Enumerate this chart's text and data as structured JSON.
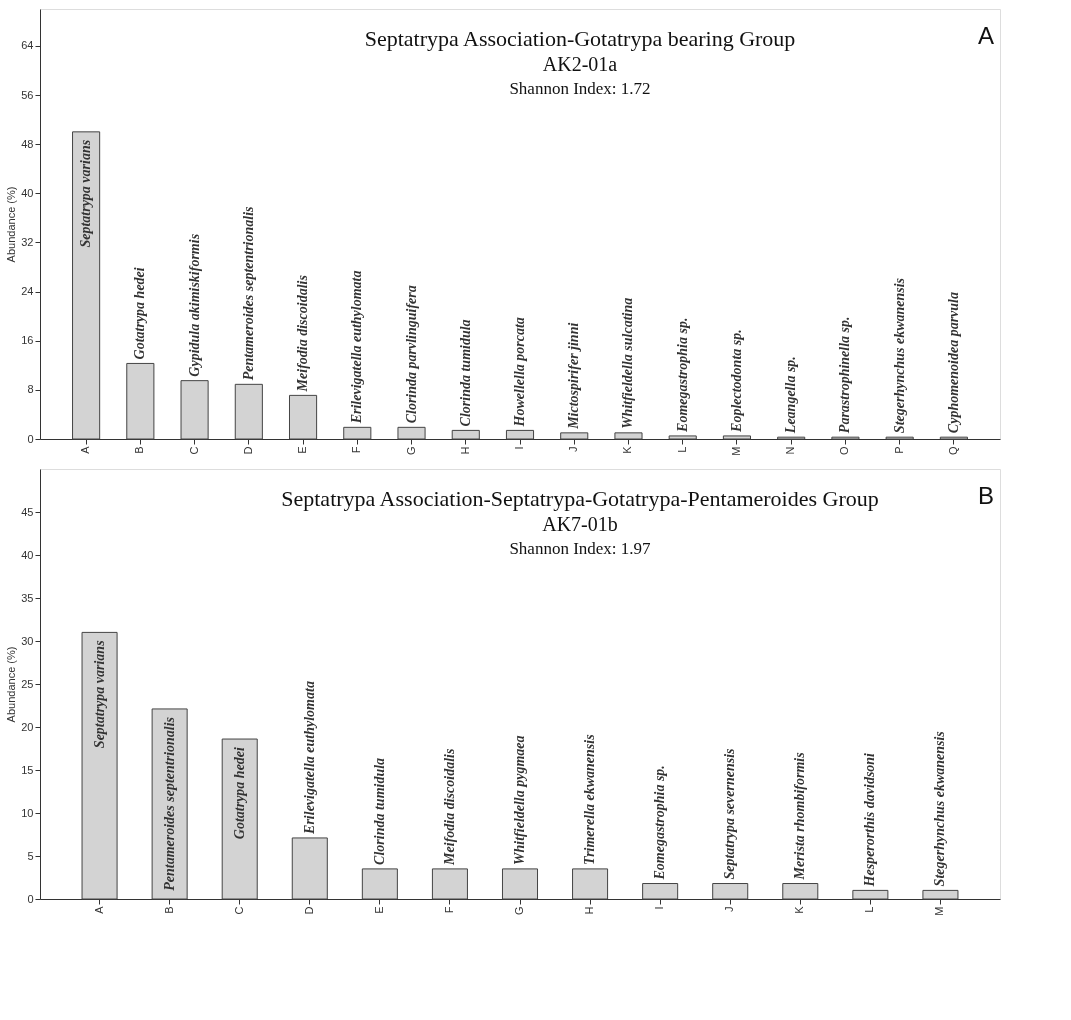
{
  "chart_data": [
    {
      "type": "bar",
      "title": "Septatrypa Association-Gotatrypa bearing Group",
      "subtitle": "AK2-01a",
      "ylabel": "Abundance (%)",
      "categories": [
        "A",
        "B",
        "C",
        "D",
        "E",
        "F",
        "G",
        "H",
        "I",
        "J",
        "K",
        "L",
        "M",
        "N",
        "O",
        "P",
        "Q"
      ],
      "values": [
        50,
        12.3,
        9.5,
        8.9,
        7.1,
        1.9,
        1.9,
        1.4,
        1.4,
        1.0,
        1.0,
        0.5,
        0.5,
        0.3,
        0.3,
        0.3,
        0.3
      ],
      "color": "#d3d3d3",
      "ylim": [
        0,
        70
      ],
      "yticks": [
        0,
        8,
        16,
        24,
        32,
        40,
        48,
        56,
        64
      ],
      "grid": false,
      "annotations": [
        "Shannon Index: 1.72",
        "A",
        {
          "text": "Septatrypa varians",
          "x": "A",
          "y": 50
        },
        {
          "text": "Gotatrypa hedei",
          "x": "B",
          "y": 12.3
        },
        {
          "text": "Gypidula akimiskiformis",
          "x": "C",
          "y": 9.5
        },
        {
          "text": "Pentameroides septentrionalis",
          "x": "D",
          "y": 8.9
        },
        {
          "text": "Meifodia discoidalis",
          "x": "E",
          "y": 7.1
        },
        {
          "text": "Erilevigatella euthylomata",
          "x": "F",
          "y": 1.9
        },
        {
          "text": "Clorinda parvlinguifera",
          "x": "G",
          "y": 1.9
        },
        {
          "text": "Clorinda tumidula",
          "x": "H",
          "y": 1.4
        },
        {
          "text": "Howellella porcata",
          "x": "I",
          "y": 1.4
        },
        {
          "text": "Mictospirifer jinni",
          "x": "J",
          "y": 1.0
        },
        {
          "text": "Whitfieldella sulcatina",
          "x": "K",
          "y": 1.0
        },
        {
          "text": "Eomegastrophia sp.",
          "x": "L",
          "y": 0.5
        },
        {
          "text": "Eoplectodonta sp.",
          "x": "M",
          "y": 0.5
        },
        {
          "text": "Leangella sp.",
          "x": "N",
          "y": 0.3
        },
        {
          "text": "Parastrophinella sp.",
          "x": "O",
          "y": 0.3
        },
        {
          "text": "Stegerhynchus ekwanensis",
          "x": "P",
          "y": 0.3
        },
        {
          "text": "Cyphomenoidea parvula",
          "x": "Q",
          "y": 0.3
        }
      ]
    },
    {
      "type": "bar",
      "title": "Septatrypa Association-Septatrypa-Gotatrypa-Pentameroides Group",
      "subtitle": "AK7-01b",
      "ylabel": "Abundance (%)",
      "categories": [
        "A",
        "B",
        "C",
        "D",
        "E",
        "F",
        "G",
        "H",
        "I",
        "J",
        "K",
        "L",
        "M"
      ],
      "values": [
        31.0,
        22.1,
        18.6,
        7.1,
        3.5,
        3.5,
        3.5,
        3.5,
        1.8,
        1.8,
        1.8,
        1.0,
        1.0
      ],
      "color": "#d3d3d3",
      "ylim": [
        0,
        50
      ],
      "yticks": [
        0,
        5,
        10,
        15,
        20,
        25,
        30,
        35,
        40,
        45
      ],
      "grid": false,
      "annotations": [
        "Shannon Index: 1.97",
        "B",
        {
          "text": "Septatrypa varians",
          "x": "A",
          "y": 31.0
        },
        {
          "text": "Pentameroides septentrionalis",
          "x": "B",
          "y": 22.1
        },
        {
          "text": "Gotatrypa hedei",
          "x": "C",
          "y": 18.6
        },
        {
          "text": "Erilevigatella euthylomata",
          "x": "D",
          "y": 7.1
        },
        {
          "text": "Clorinda tumidula",
          "x": "E",
          "y": 3.5
        },
        {
          "text": "Meifodia discoidalis",
          "x": "F",
          "y": 3.5
        },
        {
          "text": "Whitfieldella pygmaea",
          "x": "G",
          "y": 3.5
        },
        {
          "text": "Trimerella ekwanensis",
          "x": "H",
          "y": 3.5
        },
        {
          "text": "Eomegastrophia sp.",
          "x": "I",
          "y": 1.8
        },
        {
          "text": "Septatrypa severnensis",
          "x": "J",
          "y": 1.8
        },
        {
          "text": "Merista rhombiformis",
          "x": "K",
          "y": 1.8
        },
        {
          "text": "Hesperorthis davidsoni",
          "x": "L",
          "y": 1.0
        },
        {
          "text": "Stegerhynchus ekwanensis",
          "x": "M",
          "y": 1.0
        }
      ]
    }
  ]
}
